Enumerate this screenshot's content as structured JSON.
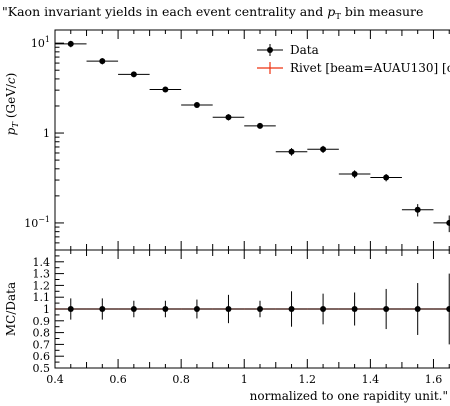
{
  "chart_data": {
    "type": "scatter",
    "title": "\"Kaon invariant yields in each event centrality and pT bin measured",
    "title_parts": [
      "\"Kaon invariant yields in each event centrality and ",
      "p",
      "T",
      " bin measure"
    ],
    "xlabel": "normalized to one rapidity unit.\"",
    "ylabel_parts": [
      "p",
      "T",
      " (GeV/",
      "c",
      ")"
    ],
    "ratio_ylabel": "MC/Data",
    "xlim": [
      0.4,
      1.7
    ],
    "ylim": [
      0.05,
      14
    ],
    "y_scale": "log",
    "ratio_ylim": [
      0.5,
      1.5
    ],
    "x_ticks": [
      "0.4",
      "0.6",
      "0.8",
      "1",
      "1.2",
      "1.4",
      "1.6"
    ],
    "x_tick_values": [
      0.4,
      0.6,
      0.8,
      1.0,
      1.2,
      1.4,
      1.6
    ],
    "y_ticks": [
      {
        "value": 10,
        "mantissa": "10",
        "exp": "1"
      },
      {
        "value": 1,
        "mantissa": "1",
        "exp": ""
      },
      {
        "value": 0.1,
        "mantissa": "10",
        "exp": "−1"
      }
    ],
    "ratio_ticks": [
      "0.5",
      "0.6",
      "0.7",
      "0.8",
      "0.9",
      "1",
      "1.1",
      "1.2",
      "1.3",
      "1.4"
    ],
    "ratio_tick_values": [
      0.5,
      0.6,
      0.7,
      0.8,
      0.9,
      1.0,
      1.1,
      1.2,
      1.3,
      1.4
    ],
    "legend": {
      "placement": "top-right",
      "entries": [
        {
          "label": "Data",
          "color": "#000000"
        },
        {
          "label": "Rivet [beam=AUAU130] [c",
          "color": "#ee3311"
        }
      ]
    },
    "series": [
      {
        "name": "Data",
        "color": "#000000",
        "x": [
          0.45,
          0.55,
          0.65,
          0.75,
          0.85,
          0.95,
          1.05,
          1.15,
          1.25,
          1.35,
          1.45,
          1.55,
          1.65
        ],
        "xerr": [
          0.05,
          0.05,
          0.05,
          0.05,
          0.05,
          0.05,
          0.05,
          0.05,
          0.05,
          0.05,
          0.05,
          0.05,
          0.05
        ],
        "y": [
          9.8,
          6.3,
          4.5,
          3.05,
          2.05,
          1.5,
          1.2,
          0.62,
          0.66,
          0.35,
          0.32,
          0.14,
          0.1
        ],
        "y_low": [
          9.0,
          5.8,
          4.2,
          2.85,
          1.92,
          1.38,
          1.13,
          0.56,
          0.6,
          0.315,
          0.29,
          0.118,
          0.079
        ],
        "y_high": [
          10.6,
          6.8,
          4.8,
          3.25,
          2.18,
          1.62,
          1.27,
          0.68,
          0.72,
          0.385,
          0.35,
          0.162,
          0.121
        ]
      }
    ],
    "ratio": {
      "x": [
        0.45,
        0.55,
        0.65,
        0.75,
        0.85,
        0.95,
        1.05,
        1.15,
        1.25,
        1.35,
        1.45,
        1.55,
        1.65
      ],
      "xerr": [
        0.05,
        0.05,
        0.05,
        0.05,
        0.05,
        0.05,
        0.05,
        0.05,
        0.05,
        0.05,
        0.05,
        0.05,
        0.05
      ],
      "y": [
        1,
        1,
        1,
        1,
        1,
        1,
        1,
        1,
        1,
        1,
        1,
        1,
        1
      ],
      "err_low": [
        0.09,
        0.09,
        0.07,
        0.07,
        0.08,
        0.12,
        0.07,
        0.15,
        0.13,
        0.14,
        0.17,
        0.22,
        0.3
      ],
      "err_high": [
        0.09,
        0.09,
        0.07,
        0.07,
        0.08,
        0.12,
        0.07,
        0.15,
        0.13,
        0.14,
        0.17,
        0.22,
        0.3
      ]
    }
  }
}
